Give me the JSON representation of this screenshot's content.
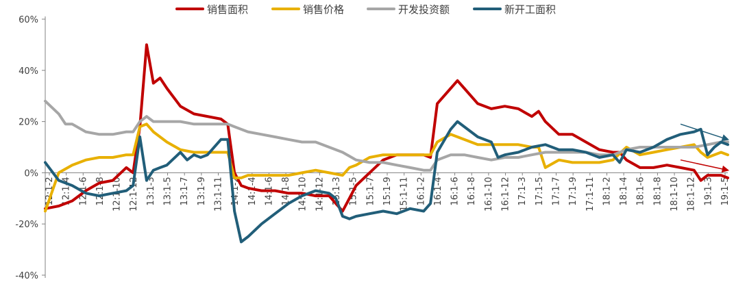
{
  "chart_data": {
    "type": "line",
    "legend_position": "top",
    "grid": false,
    "ylim": [
      -40,
      60
    ],
    "y_ticks": [
      {
        "value": 60,
        "label": "60%"
      },
      {
        "value": 40,
        "label": "40%"
      },
      {
        "value": 20,
        "label": "20%"
      },
      {
        "value": 0,
        "label": "0%"
      },
      {
        "value": -20,
        "label": "-20%"
      },
      {
        "value": -40,
        "label": "-40%"
      }
    ],
    "x_tick_labels": [
      "12:1-2",
      "12:1-4",
      "12:1-6",
      "12:1-8",
      "12:1-10",
      "12:1-12",
      "13:1-3",
      "13:1-5",
      "13:1-7",
      "13:1-9",
      "13:1-11",
      "14:1-2",
      "14:1-4",
      "14:1-6",
      "14:1-8",
      "14:1-10",
      "14:1-12",
      "15:1-3",
      "15:1-5",
      "15:1-7",
      "15:1-9",
      "15:1-11",
      "16:1-2",
      "16:1-4",
      "16:1-6",
      "16:1-8",
      "16:1-10",
      "16:1-12",
      "17:1-3",
      "17:1-5",
      "17:1-7",
      "17:1-9",
      "17:1-11",
      "18:1-2",
      "18:1-4",
      "18:1-6",
      "18:1-8",
      "18:1-10",
      "18:1-12",
      "19:1-3",
      "19:1-5"
    ],
    "series": [
      {
        "name": "销售面积",
        "color": "#C00000",
        "points": [
          [
            0,
            -14
          ],
          [
            2,
            -13
          ],
          [
            4,
            -11
          ],
          [
            6,
            -7
          ],
          [
            8,
            -4
          ],
          [
            10,
            -3
          ],
          [
            12,
            2
          ],
          [
            13,
            0
          ],
          [
            14,
            18
          ],
          [
            15,
            50
          ],
          [
            16,
            35
          ],
          [
            17,
            37
          ],
          [
            18,
            33
          ],
          [
            20,
            26
          ],
          [
            22,
            23
          ],
          [
            24,
            22
          ],
          [
            26,
            21
          ],
          [
            27,
            19
          ],
          [
            28,
            0
          ],
          [
            29,
            -5
          ],
          [
            30,
            -6
          ],
          [
            32,
            -7
          ],
          [
            34,
            -7
          ],
          [
            36,
            -8
          ],
          [
            38,
            -8
          ],
          [
            40,
            -9
          ],
          [
            42,
            -9
          ],
          [
            43,
            -12
          ],
          [
            44,
            -15
          ],
          [
            45,
            -10
          ],
          [
            46,
            -5
          ],
          [
            48,
            0
          ],
          [
            50,
            5
          ],
          [
            52,
            7
          ],
          [
            54,
            7
          ],
          [
            56,
            7
          ],
          [
            57,
            6
          ],
          [
            58,
            27
          ],
          [
            60,
            33
          ],
          [
            61,
            36
          ],
          [
            62,
            33
          ],
          [
            64,
            27
          ],
          [
            66,
            25
          ],
          [
            68,
            26
          ],
          [
            70,
            25
          ],
          [
            72,
            22
          ],
          [
            73,
            24
          ],
          [
            74,
            20
          ],
          [
            76,
            15
          ],
          [
            78,
            15
          ],
          [
            80,
            12
          ],
          [
            82,
            9
          ],
          [
            84,
            8
          ],
          [
            85,
            8
          ],
          [
            86,
            5
          ],
          [
            88,
            2
          ],
          [
            90,
            2
          ],
          [
            92,
            3
          ],
          [
            94,
            2
          ],
          [
            96,
            1
          ],
          [
            97,
            -3
          ],
          [
            98,
            -1
          ],
          [
            100,
            -1
          ],
          [
            101,
            -2
          ]
        ]
      },
      {
        "name": "销售价格",
        "color": "#E8B000",
        "points": [
          [
            0,
            -15
          ],
          [
            2,
            0
          ],
          [
            4,
            3
          ],
          [
            6,
            5
          ],
          [
            8,
            6
          ],
          [
            10,
            6
          ],
          [
            12,
            7
          ],
          [
            13,
            7
          ],
          [
            14,
            18
          ],
          [
            15,
            19
          ],
          [
            16,
            16
          ],
          [
            18,
            12
          ],
          [
            20,
            9
          ],
          [
            22,
            8
          ],
          [
            24,
            8
          ],
          [
            26,
            8
          ],
          [
            27,
            8
          ],
          [
            28,
            -2
          ],
          [
            29,
            -2
          ],
          [
            30,
            -1
          ],
          [
            32,
            -1
          ],
          [
            34,
            -1
          ],
          [
            36,
            -1
          ],
          [
            38,
            0
          ],
          [
            40,
            1
          ],
          [
            42,
            0
          ],
          [
            44,
            -1
          ],
          [
            45,
            2
          ],
          [
            46,
            3
          ],
          [
            48,
            6
          ],
          [
            50,
            7
          ],
          [
            52,
            7
          ],
          [
            54,
            7
          ],
          [
            56,
            7
          ],
          [
            57,
            7
          ],
          [
            58,
            12
          ],
          [
            60,
            15
          ],
          [
            62,
            13
          ],
          [
            64,
            11
          ],
          [
            66,
            11
          ],
          [
            68,
            11
          ],
          [
            70,
            11
          ],
          [
            72,
            10
          ],
          [
            73,
            10
          ],
          [
            74,
            2
          ],
          [
            76,
            5
          ],
          [
            78,
            4
          ],
          [
            80,
            4
          ],
          [
            82,
            4
          ],
          [
            84,
            5
          ],
          [
            86,
            10
          ],
          [
            88,
            7
          ],
          [
            90,
            8
          ],
          [
            92,
            9
          ],
          [
            94,
            10
          ],
          [
            96,
            11
          ],
          [
            97,
            8
          ],
          [
            98,
            6
          ],
          [
            100,
            8
          ],
          [
            101,
            7
          ]
        ]
      },
      {
        "name": "开发投资额",
        "color": "#A6A6A6",
        "points": [
          [
            0,
            28
          ],
          [
            2,
            23
          ],
          [
            3,
            19
          ],
          [
            4,
            19
          ],
          [
            6,
            16
          ],
          [
            8,
            15
          ],
          [
            10,
            15
          ],
          [
            12,
            16
          ],
          [
            13,
            16
          ],
          [
            14,
            20
          ],
          [
            15,
            22
          ],
          [
            16,
            20
          ],
          [
            18,
            20
          ],
          [
            20,
            20
          ],
          [
            22,
            19
          ],
          [
            24,
            19
          ],
          [
            26,
            19
          ],
          [
            27,
            19
          ],
          [
            28,
            18
          ],
          [
            30,
            16
          ],
          [
            32,
            15
          ],
          [
            34,
            14
          ],
          [
            36,
            13
          ],
          [
            38,
            12
          ],
          [
            40,
            12
          ],
          [
            42,
            10
          ],
          [
            44,
            8
          ],
          [
            46,
            5
          ],
          [
            48,
            4
          ],
          [
            50,
            4
          ],
          [
            52,
            3
          ],
          [
            54,
            2
          ],
          [
            56,
            1
          ],
          [
            57,
            1
          ],
          [
            58,
            5
          ],
          [
            60,
            7
          ],
          [
            62,
            7
          ],
          [
            64,
            6
          ],
          [
            66,
            5
          ],
          [
            68,
            6
          ],
          [
            70,
            6
          ],
          [
            72,
            7
          ],
          [
            74,
            8
          ],
          [
            76,
            8
          ],
          [
            78,
            8
          ],
          [
            80,
            8
          ],
          [
            82,
            7
          ],
          [
            84,
            7
          ],
          [
            86,
            9
          ],
          [
            88,
            10
          ],
          [
            90,
            10
          ],
          [
            92,
            10
          ],
          [
            94,
            10
          ],
          [
            96,
            10
          ],
          [
            98,
            11
          ],
          [
            100,
            12
          ],
          [
            101,
            12
          ]
        ]
      },
      {
        "name": "新开工面积",
        "color": "#215E79",
        "points": [
          [
            0,
            4
          ],
          [
            2,
            -3
          ],
          [
            4,
            -5
          ],
          [
            6,
            -8
          ],
          [
            8,
            -9
          ],
          [
            10,
            -8
          ],
          [
            12,
            -7
          ],
          [
            13,
            -5
          ],
          [
            14,
            14
          ],
          [
            15,
            -3
          ],
          [
            16,
            1
          ],
          [
            17,
            2
          ],
          [
            18,
            3
          ],
          [
            20,
            8
          ],
          [
            21,
            5
          ],
          [
            22,
            7
          ],
          [
            23,
            6
          ],
          [
            24,
            7
          ],
          [
            26,
            13
          ],
          [
            27,
            13
          ],
          [
            28,
            -15
          ],
          [
            29,
            -27
          ],
          [
            30,
            -25
          ],
          [
            32,
            -20
          ],
          [
            34,
            -16
          ],
          [
            36,
            -12
          ],
          [
            38,
            -9
          ],
          [
            40,
            -7
          ],
          [
            42,
            -8
          ],
          [
            43,
            -10
          ],
          [
            44,
            -17
          ],
          [
            45,
            -18
          ],
          [
            46,
            -17
          ],
          [
            48,
            -16
          ],
          [
            50,
            -15
          ],
          [
            52,
            -16
          ],
          [
            54,
            -14
          ],
          [
            56,
            -15
          ],
          [
            57,
            -12
          ],
          [
            58,
            8
          ],
          [
            60,
            17
          ],
          [
            61,
            20
          ],
          [
            62,
            18
          ],
          [
            64,
            14
          ],
          [
            66,
            12
          ],
          [
            67,
            6
          ],
          [
            68,
            7
          ],
          [
            70,
            8
          ],
          [
            72,
            10
          ],
          [
            74,
            11
          ],
          [
            76,
            9
          ],
          [
            78,
            9
          ],
          [
            80,
            8
          ],
          [
            82,
            6
          ],
          [
            84,
            7
          ],
          [
            85,
            4
          ],
          [
            86,
            9
          ],
          [
            88,
            8
          ],
          [
            90,
            10
          ],
          [
            92,
            13
          ],
          [
            94,
            15
          ],
          [
            96,
            16
          ],
          [
            97,
            17
          ],
          [
            98,
            7
          ],
          [
            99,
            10
          ],
          [
            100,
            12
          ],
          [
            101,
            11
          ]
        ]
      }
    ],
    "annotations": [
      {
        "type": "arrow",
        "color": "#215E79",
        "from": [
          94,
          19
        ],
        "to": [
          101,
          13
        ]
      },
      {
        "type": "arrow",
        "color": "#C00000",
        "from": [
          94,
          5
        ],
        "to": [
          101,
          1
        ]
      }
    ]
  }
}
